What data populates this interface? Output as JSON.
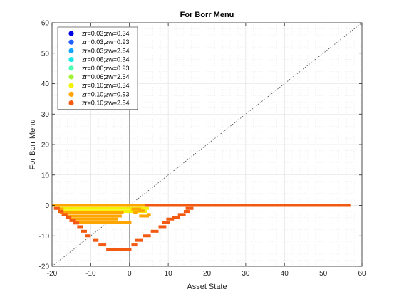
{
  "chart_data": {
    "type": "scatter",
    "title": "For Borr Menu",
    "xlabel": "Asset State",
    "ylabel": "For Borr Menu",
    "xlim": [
      -20,
      60
    ],
    "ylim": [
      -20,
      60
    ],
    "xticks": [
      -20,
      -10,
      0,
      10,
      20,
      30,
      40,
      50,
      60
    ],
    "yticks": [
      -20,
      -10,
      0,
      10,
      20,
      30,
      40,
      50,
      60
    ],
    "grid": "minor-dotted",
    "legend_position": "top-left",
    "reference_line": {
      "style": "dotted",
      "from": [
        -20,
        -20
      ],
      "to": [
        60,
        60
      ]
    },
    "series": [
      {
        "name": "zr=0.03;zw=0.34",
        "color": "#0000e6",
        "segments": [
          [
            -20,
            0,
            0
          ]
        ]
      },
      {
        "name": "zr=0.03;zw=0.93",
        "color": "#1f5fff",
        "segments": [
          [
            -20,
            0,
            0
          ]
        ]
      },
      {
        "name": "zr=0.03;zw=2.54",
        "color": "#14a5ff",
        "segments": [
          [
            -20,
            0,
            0
          ]
        ]
      },
      {
        "name": "zr=0.06;zw=0.34",
        "color": "#19e6e6",
        "segments": [
          [
            -20,
            0,
            0
          ]
        ]
      },
      {
        "name": "zr=0.06;zw=0.93",
        "color": "#4dffb3",
        "segments": [
          [
            -20,
            0,
            0
          ]
        ]
      },
      {
        "name": "zr=0.06;zw=2.54",
        "color": "#a3f23a",
        "segments": [
          [
            -20,
            0,
            0
          ]
        ]
      },
      {
        "name": "zr=0.10;zw=0.34",
        "color": "#f2f200",
        "segments": [
          [
            -20,
            0,
            0
          ],
          [
            -18.5,
            5,
            -1.0
          ],
          [
            -17.8,
            4.5,
            -2.0
          ],
          [
            0,
            3.5,
            -1.5
          ]
        ]
      },
      {
        "name": "zr=0.10;zw=0.93",
        "color": "#ffa500",
        "segments": [
          [
            -20,
            57,
            0
          ],
          [
            -18.5,
            -17,
            -1.2
          ],
          [
            -18,
            -1.5,
            -2.4
          ],
          [
            -16.5,
            -2,
            -3.5
          ],
          [
            -15.5,
            -3,
            -4.5
          ],
          [
            -14.5,
            0.5,
            -5.5
          ],
          [
            0.5,
            3,
            -1.2
          ],
          [
            2,
            4,
            -1.8
          ],
          [
            1,
            2,
            -2.4
          ],
          [
            4.5,
            5.5,
            -3.0
          ],
          [
            2.5,
            5,
            -3.5
          ]
        ]
      },
      {
        "name": "zr=0.10;zw=2.54",
        "color": "#f25a12",
        "segments": [
          [
            -19.5,
            -18,
            -1.0
          ],
          [
            -18.5,
            -17,
            -2.0
          ],
          [
            -17.5,
            -16,
            -3.0
          ],
          [
            -16.5,
            -15,
            -4.0
          ],
          [
            -15.5,
            -14,
            -5.0
          ],
          [
            -14.5,
            -13,
            -5.8
          ],
          [
            -13.5,
            -12,
            -7.0
          ],
          [
            -12.5,
            -11,
            -8.5
          ],
          [
            -11.5,
            -10,
            -10.0
          ],
          [
            -9.5,
            -8,
            -11.5
          ],
          [
            -8,
            -6,
            -13.0
          ],
          [
            -6,
            0.5,
            -14.5
          ],
          [
            0.5,
            2,
            -13.0
          ],
          [
            1.5,
            3.5,
            -11.5
          ],
          [
            3.5,
            5.5,
            -10.0
          ],
          [
            5.5,
            7.5,
            -8.5
          ],
          [
            7.5,
            9.5,
            -7.0
          ],
          [
            8.5,
            10.5,
            -5.5
          ],
          [
            9.5,
            11.5,
            -4.5
          ],
          [
            11,
            13,
            -4.0
          ],
          [
            12.5,
            14.5,
            -3.0
          ],
          [
            14,
            15.5,
            -2.0
          ],
          [
            14.5,
            16.5,
            -1.0
          ],
          [
            4,
            57,
            0
          ]
        ]
      }
    ]
  }
}
